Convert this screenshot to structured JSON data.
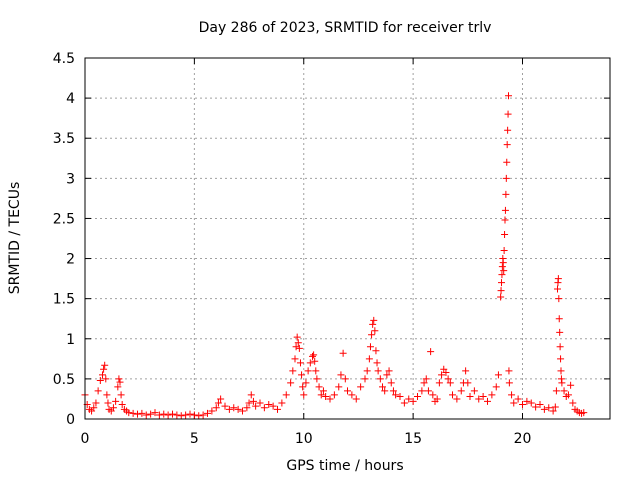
{
  "chart_data": {
    "type": "scatter",
    "title": "Day 286 of 2023, SRMTID for receiver trlv",
    "xlabel": "GPS time / hours",
    "ylabel": "SRMTID / TECUs",
    "xlim": [
      0,
      24
    ],
    "ylim": [
      0,
      4.5
    ],
    "xticks": [
      0,
      5,
      10,
      15,
      20
    ],
    "xtick_labels": [
      "0",
      "5",
      "10",
      "15",
      "20"
    ],
    "yticks": [
      0,
      0.5,
      1,
      1.5,
      2,
      2.5,
      3,
      3.5,
      4,
      4.5
    ],
    "ytick_labels": [
      "0",
      "0.5",
      "1",
      "1.5",
      "2",
      "2.5",
      "3",
      "3.5",
      "4",
      "4.5"
    ],
    "grid": true,
    "marker": "plus",
    "marker_color": "#ff0000",
    "series": [
      {
        "name": "trlv",
        "x": [
          0.0,
          0.1,
          0.2,
          0.3,
          0.4,
          0.5,
          0.6,
          0.7,
          0.8,
          0.85,
          0.9,
          0.95,
          1.0,
          1.05,
          1.1,
          1.2,
          1.3,
          1.4,
          1.5,
          1.55,
          1.6,
          1.65,
          1.7,
          1.8,
          1.9,
          2.0,
          2.2,
          2.4,
          2.6,
          2.8,
          3.0,
          3.2,
          3.4,
          3.6,
          3.8,
          4.0,
          4.2,
          4.4,
          4.6,
          4.8,
          5.0,
          5.2,
          5.4,
          5.6,
          5.8,
          6.0,
          6.1,
          6.2,
          6.4,
          6.6,
          6.8,
          7.0,
          7.2,
          7.4,
          7.5,
          7.6,
          7.7,
          7.8,
          8.0,
          8.2,
          8.4,
          8.6,
          8.8,
          9.0,
          9.2,
          9.4,
          9.5,
          9.6,
          9.65,
          9.7,
          9.75,
          9.8,
          9.85,
          9.9,
          9.95,
          10.0,
          10.1,
          10.2,
          10.3,
          10.4,
          10.45,
          10.5,
          10.55,
          10.6,
          10.7,
          10.8,
          10.9,
          11.0,
          11.2,
          11.4,
          11.6,
          11.7,
          11.8,
          11.9,
          12.0,
          12.2,
          12.4,
          12.6,
          12.8,
          12.9,
          13.0,
          13.05,
          13.1,
          13.15,
          13.2,
          13.25,
          13.3,
          13.35,
          13.4,
          13.5,
          13.6,
          13.7,
          13.8,
          13.9,
          14.0,
          14.1,
          14.2,
          14.4,
          14.6,
          14.8,
          15.0,
          15.2,
          15.4,
          15.5,
          15.6,
          15.7,
          15.8,
          15.9,
          16.0,
          16.1,
          16.2,
          16.3,
          16.4,
          16.5,
          16.6,
          16.7,
          16.8,
          17.0,
          17.2,
          17.3,
          17.4,
          17.5,
          17.6,
          17.8,
          18.0,
          18.2,
          18.4,
          18.6,
          18.8,
          18.9,
          19.0,
          19.02,
          19.04,
          19.06,
          19.08,
          19.1,
          19.12,
          19.14,
          19.16,
          19.18,
          19.2,
          19.22,
          19.24,
          19.26,
          19.28,
          19.3,
          19.32,
          19.34,
          19.36,
          19.38,
          19.4,
          19.5,
          19.6,
          19.8,
          20.0,
          20.2,
          20.4,
          20.6,
          20.8,
          21.0,
          21.2,
          21.4,
          21.5,
          21.55,
          21.6,
          21.62,
          21.64,
          21.66,
          21.68,
          21.7,
          21.72,
          21.74,
          21.76,
          21.78,
          21.8,
          21.9,
          22.0,
          22.1,
          22.2,
          22.3,
          22.4,
          22.5,
          22.6,
          22.7,
          22.8
        ],
        "y": [
          0.3,
          0.18,
          0.12,
          0.1,
          0.14,
          0.2,
          0.35,
          0.48,
          0.55,
          0.62,
          0.67,
          0.5,
          0.3,
          0.2,
          0.12,
          0.1,
          0.14,
          0.22,
          0.4,
          0.5,
          0.46,
          0.3,
          0.18,
          0.12,
          0.1,
          0.08,
          0.07,
          0.06,
          0.07,
          0.05,
          0.06,
          0.08,
          0.05,
          0.06,
          0.05,
          0.06,
          0.05,
          0.04,
          0.05,
          0.06,
          0.05,
          0.04,
          0.05,
          0.07,
          0.1,
          0.14,
          0.2,
          0.25,
          0.16,
          0.12,
          0.14,
          0.12,
          0.1,
          0.14,
          0.2,
          0.3,
          0.22,
          0.16,
          0.2,
          0.14,
          0.18,
          0.16,
          0.12,
          0.2,
          0.3,
          0.45,
          0.6,
          0.75,
          0.9,
          1.02,
          0.95,
          0.88,
          0.7,
          0.55,
          0.4,
          0.3,
          0.45,
          0.6,
          0.7,
          0.78,
          0.8,
          0.72,
          0.6,
          0.5,
          0.4,
          0.3,
          0.35,
          0.28,
          0.25,
          0.3,
          0.4,
          0.55,
          0.82,
          0.5,
          0.35,
          0.3,
          0.25,
          0.4,
          0.5,
          0.6,
          0.75,
          0.9,
          1.05,
          1.18,
          1.23,
          1.1,
          0.85,
          0.7,
          0.6,
          0.5,
          0.4,
          0.35,
          0.55,
          0.6,
          0.45,
          0.35,
          0.3,
          0.28,
          0.2,
          0.25,
          0.22,
          0.28,
          0.35,
          0.45,
          0.5,
          0.35,
          0.84,
          0.3,
          0.22,
          0.25,
          0.45,
          0.55,
          0.62,
          0.58,
          0.5,
          0.45,
          0.3,
          0.25,
          0.35,
          0.45,
          0.6,
          0.45,
          0.28,
          0.35,
          0.25,
          0.28,
          0.22,
          0.3,
          0.4,
          0.55,
          1.52,
          1.6,
          1.7,
          1.8,
          1.9,
          2.0,
          1.95,
          1.85,
          2.1,
          2.3,
          2.48,
          2.6,
          2.8,
          3.0,
          3.2,
          3.42,
          3.6,
          3.8,
          4.03,
          0.6,
          0.45,
          0.3,
          0.2,
          0.25,
          0.18,
          0.22,
          0.2,
          0.15,
          0.18,
          0.12,
          0.14,
          0.1,
          0.15,
          0.35,
          1.62,
          1.7,
          1.75,
          1.5,
          1.25,
          1.08,
          0.9,
          0.75,
          0.6,
          0.5,
          0.45,
          0.35,
          0.28,
          0.3,
          0.42,
          0.2,
          0.12,
          0.1,
          0.08,
          0.07,
          0.08
        ]
      }
    ]
  }
}
